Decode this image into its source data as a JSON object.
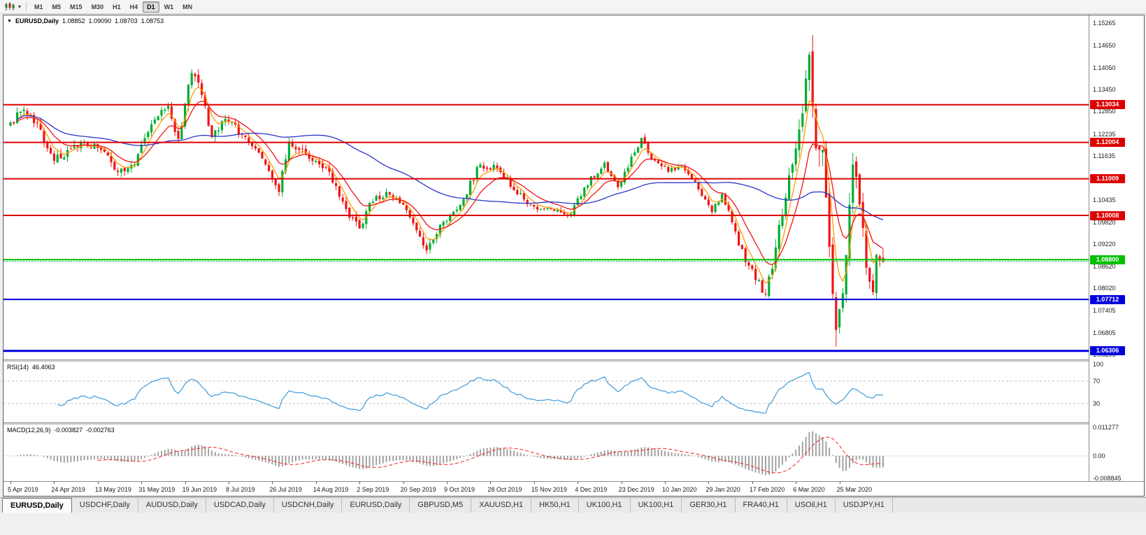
{
  "toolbar": {
    "chart_type_icon": "candlestick-chart",
    "dropdown_glyph": "▾",
    "periods": [
      "M1",
      "M5",
      "M15",
      "M30",
      "H1",
      "H4",
      "D1",
      "W1",
      "MN"
    ],
    "active_period": "D1"
  },
  "chart_header": {
    "collapse_icon": "▼",
    "symbol": "EURUSD,Daily",
    "open": "1.08852",
    "high": "1.09090",
    "low": "1.08703",
    "close": "1.08753"
  },
  "price_axis": {
    "labels": [
      "1.15265",
      "1.14650",
      "1.14050",
      "1.13450",
      "1.12850",
      "1.12235",
      "1.11635",
      "1.11035",
      "1.10435",
      "1.09820",
      "1.09220",
      "1.08620",
      "1.08020",
      "1.07405",
      "1.06805",
      "1.06205"
    ]
  },
  "hlines": [
    {
      "value": 1.13034,
      "label": "1.13034",
      "color": "#dd0000",
      "width": 2
    },
    {
      "value": 1.12004,
      "label": "1.12004",
      "color": "#dd0000",
      "width": 2
    },
    {
      "value": 1.11009,
      "label": "1.11009",
      "color": "#dd0000",
      "width": 2
    },
    {
      "value": 1.10008,
      "label": "1.10008",
      "color": "#dd0000",
      "width": 2
    },
    {
      "value": 1.088,
      "label": "1.08800",
      "color": "#00c000",
      "width": 2
    },
    {
      "value": 1.07712,
      "label": "1.07712",
      "color": "#0000dd",
      "width": 2
    },
    {
      "value": 1.06306,
      "label": "1.06306",
      "color": "#0000dd",
      "width": 3
    }
  ],
  "bid_line": {
    "value": 1.08753,
    "color": "#00b050"
  },
  "rsi_panel": {
    "label": "RSI(14)",
    "value": "46.4063",
    "axis_labels": [
      "100",
      "70",
      "30"
    ],
    "axis_values": [
      100,
      70,
      30
    ],
    "levels": [
      70,
      30
    ],
    "line_color": "#3d9bd9"
  },
  "macd_panel": {
    "label": "MACD(12,26,9)",
    "macd_value": "-0.003827",
    "signal_value": "-0.002763",
    "axis_labels": [
      "0.011277",
      "0.00",
      "-0.008845"
    ],
    "axis_values": [
      0.011277,
      0,
      -0.008845
    ],
    "histogram_color": "#9a9a9a",
    "signal_color": "#ee2222"
  },
  "date_axis": {
    "label_step": 13,
    "labels": [
      "5 Apr 2019",
      "24 Apr 2019",
      "13 May 2019",
      "31 May 2019",
      "19 Jun 2019",
      "8 Jul 2019",
      "26 Jul 2019",
      "14 Aug 2019",
      "2 Sep 2019",
      "20 Sep 2019",
      "9 Oct 2019",
      "28 Oct 2019",
      "15 Nov 2019",
      "4 Dec 2019",
      "23 Dec 2019",
      "10 Jan 2020",
      "29 Jan 2020",
      "17 Feb 2020",
      "6 Mar 2020",
      "25 Mar 2020"
    ]
  },
  "chart_data": {
    "type": "candlestick",
    "symbol": "EURUSD",
    "timeframe": "Daily",
    "title": "EURUSD,Daily",
    "price_min": 1.06205,
    "price_max": 1.15265,
    "candle_count": 261,
    "up_color": "#00ad33",
    "down_color": "#f01414",
    "close_anchors": [
      [
        0,
        1.1255,
        0.0022
      ],
      [
        4,
        1.129,
        0.0022
      ],
      [
        9,
        1.1235,
        0.0022
      ],
      [
        13,
        1.115,
        0.0022
      ],
      [
        21,
        1.12,
        0.002
      ],
      [
        27,
        1.118,
        0.002
      ],
      [
        32,
        1.112,
        0.002
      ],
      [
        37,
        1.114,
        0.0018
      ],
      [
        42,
        1.125,
        0.0022
      ],
      [
        47,
        1.13,
        0.0022
      ],
      [
        50,
        1.121,
        0.0022
      ],
      [
        54,
        1.139,
        0.0028
      ],
      [
        57,
        1.133,
        0.0022
      ],
      [
        60,
        1.1215,
        0.002
      ],
      [
        64,
        1.1265,
        0.0018
      ],
      [
        70,
        1.1215,
        0.0016
      ],
      [
        76,
        1.114,
        0.0016
      ],
      [
        80,
        1.1065,
        0.002
      ],
      [
        83,
        1.12,
        0.0024
      ],
      [
        88,
        1.117,
        0.0018
      ],
      [
        95,
        1.112,
        0.0016
      ],
      [
        101,
        1.0995,
        0.002
      ],
      [
        104,
        1.0965,
        0.0026
      ],
      [
        107,
        1.1035,
        0.002
      ],
      [
        112,
        1.1065,
        0.0016
      ],
      [
        118,
        1.1015,
        0.0016
      ],
      [
        121,
        1.096,
        0.0018
      ],
      [
        124,
        1.0905,
        0.002
      ],
      [
        128,
        1.0975,
        0.0018
      ],
      [
        134,
        1.103,
        0.0018
      ],
      [
        140,
        1.114,
        0.002
      ],
      [
        145,
        1.113,
        0.0016
      ],
      [
        150,
        1.107,
        0.0014
      ],
      [
        156,
        1.1025,
        0.0014
      ],
      [
        162,
        1.1013,
        0.0012
      ],
      [
        167,
        1.1005,
        0.0012
      ],
      [
        171,
        1.1077,
        0.0014
      ],
      [
        177,
        1.1145,
        0.0014
      ],
      [
        181,
        1.1078,
        0.0014
      ],
      [
        188,
        1.1213,
        0.0018
      ],
      [
        190,
        1.1172,
        0.0016
      ],
      [
        196,
        1.112,
        0.0014
      ],
      [
        200,
        1.1135,
        0.0012
      ],
      [
        204,
        1.1093,
        0.0012
      ],
      [
        209,
        1.101,
        0.0014
      ],
      [
        212,
        1.106,
        0.0014
      ],
      [
        219,
        1.0873,
        0.0018
      ],
      [
        225,
        1.0785,
        0.002
      ],
      [
        230,
        1.1,
        0.0045
      ],
      [
        233,
        1.114,
        0.005
      ],
      [
        236,
        1.128,
        0.0055
      ],
      [
        238,
        1.144,
        0.0065
      ],
      [
        240,
        1.1184,
        0.0075
      ],
      [
        242,
        1.118,
        0.006
      ],
      [
        244,
        1.0915,
        0.007
      ],
      [
        246,
        1.0688,
        0.007
      ],
      [
        248,
        1.0788,
        0.006
      ],
      [
        250,
        1.103,
        0.0055
      ],
      [
        251,
        1.114,
        0.005
      ],
      [
        253,
        1.1031,
        0.0045
      ],
      [
        255,
        1.0858,
        0.0045
      ],
      [
        257,
        1.0791,
        0.004
      ],
      [
        258,
        1.0893,
        0.0035
      ],
      [
        260,
        1.0875,
        0.003
      ]
    ],
    "moving_averages": [
      {
        "name": "fast-ma",
        "period": 5,
        "type": "ema",
        "color": "#ff9a00"
      },
      {
        "name": "medium-ma",
        "period": 12,
        "type": "ema",
        "color": "#f01414"
      },
      {
        "name": "slow-ma",
        "period": 55,
        "type": "sma",
        "color": "#2a35c8"
      }
    ],
    "rsi_period": 14,
    "macd": {
      "fast": 12,
      "slow": 26,
      "signal": 9
    }
  },
  "tabs": [
    {
      "label": "EURUSD,Daily",
      "active": true
    },
    {
      "label": "USDCHF,Daily",
      "active": false
    },
    {
      "label": "AUDUSD,Daily",
      "active": false
    },
    {
      "label": "USDCAD,Daily",
      "active": false
    },
    {
      "label": "USDCNH,Daily",
      "active": false
    },
    {
      "label": "EURUSD,Daily",
      "active": false
    },
    {
      "label": "GBPUSD,M5",
      "active": false
    },
    {
      "label": "XAUUSD,H1",
      "active": false
    },
    {
      "label": "HK50,H1",
      "active": false
    },
    {
      "label": "UK100,H1",
      "active": false
    },
    {
      "label": "UK100,H1",
      "active": false
    },
    {
      "label": "GER30,H1",
      "active": false
    },
    {
      "label": "FRA40,H1",
      "active": false
    },
    {
      "label": "USOil,H1",
      "active": false
    },
    {
      "label": "USDJPY,H1",
      "active": false
    }
  ]
}
